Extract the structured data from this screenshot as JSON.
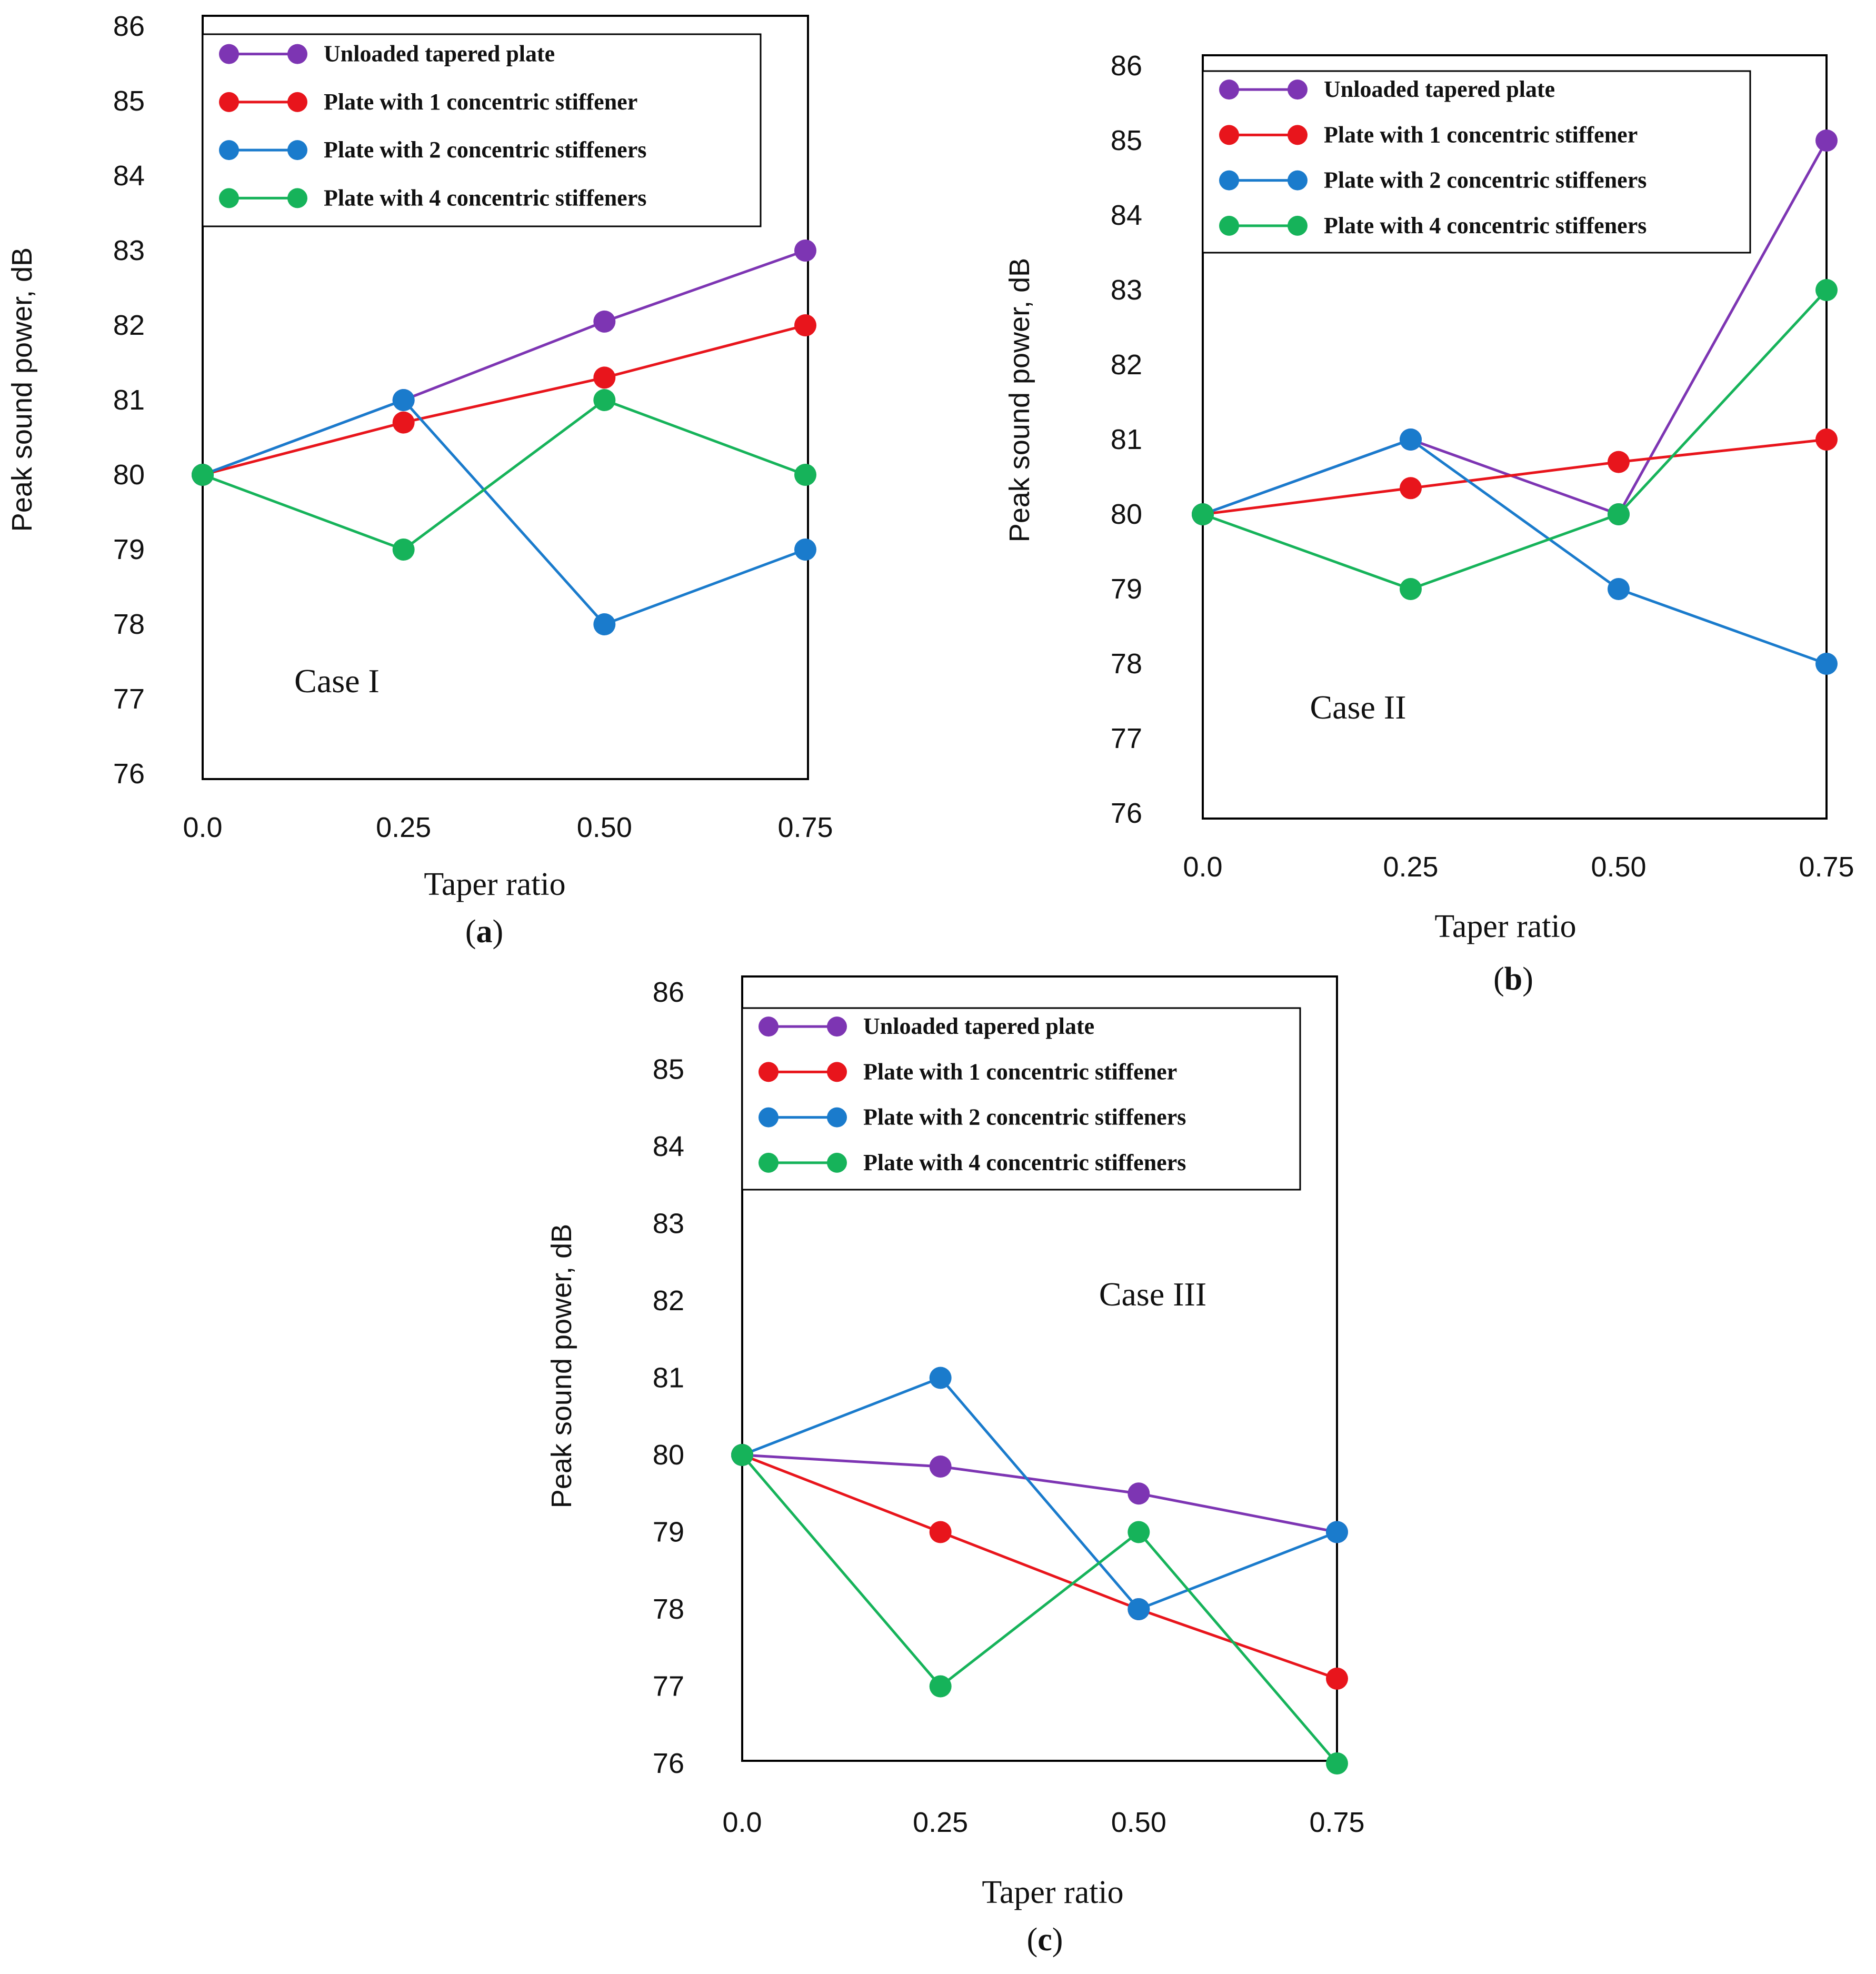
{
  "chart_data": [
    {
      "type": "line",
      "panel": "(a)",
      "panel_letter": "a",
      "case_label": "Case I",
      "xlabel": "Taper ratio",
      "ylabel": "Peak sound power, dB",
      "x": [
        0.0,
        0.25,
        0.5,
        0.75
      ],
      "xticks": [
        "0.0",
        "0.25",
        "0.50",
        "0.75"
      ],
      "yticks": [
        "76",
        "77",
        "78",
        "79",
        "80",
        "81",
        "82",
        "83",
        "84",
        "85",
        "86"
      ],
      "ylim": [
        76,
        86
      ],
      "legend_position": "top-left",
      "series": [
        {
          "name": "Unloaded tapered plate",
          "color": "#7d35b3",
          "values": [
            80.0,
            81.0,
            82.05,
            83.0
          ]
        },
        {
          "name": "Plate with 1 concentric stiffener",
          "color": "#e8151c",
          "values": [
            80.0,
            80.7,
            81.3,
            82.0
          ]
        },
        {
          "name": "Plate with 2 concentric stiffeners",
          "color": "#1a7bcc",
          "values": [
            80.0,
            81.0,
            78.0,
            79.0
          ]
        },
        {
          "name": "Plate with 4 concentric stiffeners",
          "color": "#16b35a",
          "values": [
            80.0,
            79.0,
            81.0,
            80.0
          ]
        }
      ]
    },
    {
      "type": "line",
      "panel": "(b)",
      "panel_letter": "b",
      "case_label": "Case II",
      "xlabel": "Taper ratio",
      "ylabel": "Peak sound power, dB",
      "x": [
        0.0,
        0.25,
        0.5,
        0.75
      ],
      "xticks": [
        "0.0",
        "0.25",
        "0.50",
        "0.75"
      ],
      "yticks": [
        "76",
        "77",
        "78",
        "79",
        "80",
        "81",
        "82",
        "83",
        "84",
        "85",
        "86"
      ],
      "ylim": [
        76,
        86
      ],
      "legend_position": "top-left",
      "series": [
        {
          "name": "Unloaded tapered plate",
          "color": "#7d35b3",
          "values": [
            80.0,
            81.0,
            80.0,
            85.0
          ]
        },
        {
          "name": "Plate with 1 concentric stiffener",
          "color": "#e8151c",
          "values": [
            80.0,
            80.35,
            80.7,
            81.0
          ]
        },
        {
          "name": "Plate with 2 concentric stiffeners",
          "color": "#1a7bcc",
          "values": [
            80.0,
            81.0,
            79.0,
            78.0
          ]
        },
        {
          "name": "Plate with 4 concentric stiffeners",
          "color": "#16b35a",
          "values": [
            80.0,
            79.0,
            80.0,
            83.0
          ]
        }
      ]
    },
    {
      "type": "line",
      "panel": "(c)",
      "panel_letter": "c",
      "case_label": "Case III",
      "xlabel": "Taper ratio",
      "ylabel": "Peak sound power, dB",
      "x": [
        0.0,
        0.25,
        0.5,
        0.75
      ],
      "xticks": [
        "0.0",
        "0.25",
        "0.50",
        "0.75"
      ],
      "yticks": [
        "76",
        "77",
        "78",
        "79",
        "80",
        "81",
        "82",
        "83",
        "84",
        "85",
        "86"
      ],
      "ylim": [
        76,
        86
      ],
      "legend_position": "top-left",
      "series": [
        {
          "name": "Unloaded tapered plate",
          "color": "#7d35b3",
          "values": [
            80.0,
            79.85,
            79.5,
            79.0
          ]
        },
        {
          "name": "Plate with 1 concentric stiffener",
          "color": "#e8151c",
          "values": [
            80.0,
            79.0,
            78.0,
            77.1
          ]
        },
        {
          "name": "Plate with 2 concentric stiffeners",
          "color": "#1a7bcc",
          "values": [
            80.0,
            81.0,
            78.0,
            79.0
          ]
        },
        {
          "name": "Plate with 4 concentric stiffeners",
          "color": "#16b35a",
          "values": [
            80.0,
            77.0,
            79.0,
            76.0
          ]
        }
      ]
    }
  ]
}
